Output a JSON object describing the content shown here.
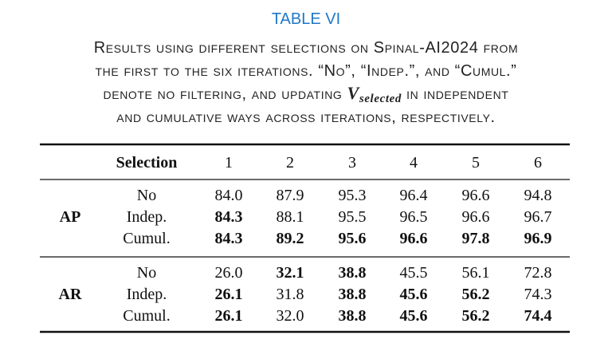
{
  "caption": {
    "label": "TABLE VI",
    "line_1": "Results using different selections on Spinal-AI2024 from",
    "line_2": "the first to the six iterations. “No”, “Indep.”, and “Cumul.”",
    "line_3_before": "denote no filtering, and updating",
    "symbol": "V",
    "subscript": "selected",
    "line_3_after": "in independent",
    "line_4": "and cumulative ways across iterations, respectively."
  },
  "table": {
    "header": {
      "selection": "Selection",
      "iterations": [
        "1",
        "2",
        "3",
        "4",
        "5",
        "6"
      ]
    },
    "groups": [
      {
        "metric": "AP",
        "rows": [
          {
            "selection": "No",
            "values": [
              "84.0",
              "87.9",
              "95.3",
              "96.4",
              "96.6",
              "94.8"
            ],
            "bold": []
          },
          {
            "selection": "Indep.",
            "values": [
              "84.3",
              "88.1",
              "95.5",
              "96.5",
              "96.6",
              "96.7"
            ],
            "bold": [
              0
            ]
          },
          {
            "selection": "Cumul.",
            "values": [
              "84.3",
              "89.2",
              "95.6",
              "96.6",
              "97.8",
              "96.9"
            ],
            "bold": [
              0,
              1,
              2,
              3,
              4,
              5
            ]
          }
        ]
      },
      {
        "metric": "AR",
        "rows": [
          {
            "selection": "No",
            "values": [
              "26.0",
              "32.1",
              "38.8",
              "45.5",
              "56.1",
              "72.8"
            ],
            "bold": [
              1,
              2
            ]
          },
          {
            "selection": "Indep.",
            "values": [
              "26.1",
              "31.8",
              "38.8",
              "45.6",
              "56.2",
              "74.3"
            ],
            "bold": [
              0,
              2,
              3,
              4
            ]
          },
          {
            "selection": "Cumul.",
            "values": [
              "26.1",
              "32.0",
              "38.8",
              "45.6",
              "56.2",
              "74.4"
            ],
            "bold": [
              0,
              2,
              3,
              4,
              5
            ]
          }
        ]
      }
    ]
  }
}
